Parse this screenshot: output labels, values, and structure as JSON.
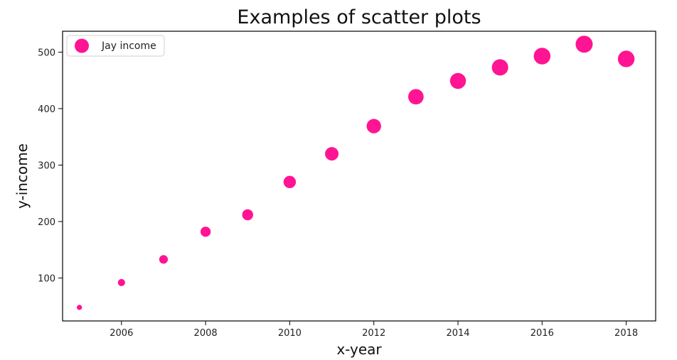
{
  "chart_data": {
    "type": "scatter",
    "title": "Examples of scatter plots",
    "xlabel": "x-year",
    "ylabel": "y-income",
    "xlim": [
      2004.6,
      2018.7
    ],
    "ylim": [
      24,
      537
    ],
    "x_ticks": [
      2006,
      2008,
      2010,
      2012,
      2014,
      2016,
      2018
    ],
    "y_ticks": [
      100,
      200,
      300,
      400,
      500
    ],
    "grid": false,
    "legend": {
      "position": "upper-left",
      "entries": [
        "Jay income"
      ]
    },
    "series": [
      {
        "name": "Jay income",
        "color": "#ff1493",
        "x": [
          2005,
          2006,
          2007,
          2008,
          2009,
          2010,
          2011,
          2012,
          2013,
          2014,
          2015,
          2016,
          2017,
          2018
        ],
        "y": [
          48,
          92,
          133,
          182,
          212,
          270,
          320,
          369,
          421,
          449,
          473,
          493,
          514,
          488
        ]
      }
    ]
  }
}
